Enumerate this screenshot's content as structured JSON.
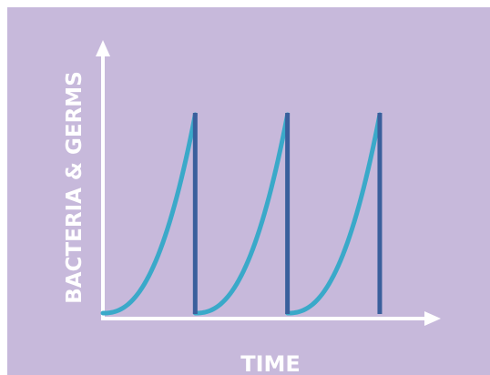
{
  "chart_data": {
    "type": "line",
    "xlabel": "TIME",
    "ylabel": "BACTERIA & GERMS",
    "title": "",
    "grid": false,
    "legend": "none",
    "colors": {
      "background": "#c7b9db",
      "axis": "#ffffff",
      "curve": "#3aa9c9",
      "reset_line": "#3a5f9c",
      "label": "#ffffff"
    },
    "cycles": [
      {
        "start": 0,
        "end": 1,
        "min": 0.0,
        "peak": 1.0
      },
      {
        "start": 1,
        "end": 2,
        "min": 0.0,
        "peak": 1.0
      },
      {
        "start": 2,
        "end": 3,
        "min": 0.0,
        "peak": 1.0
      }
    ],
    "reset_markers": [
      1,
      2,
      3
    ],
    "xlim": [
      0,
      3.8
    ],
    "ylim": [
      0,
      1.22
    ]
  }
}
